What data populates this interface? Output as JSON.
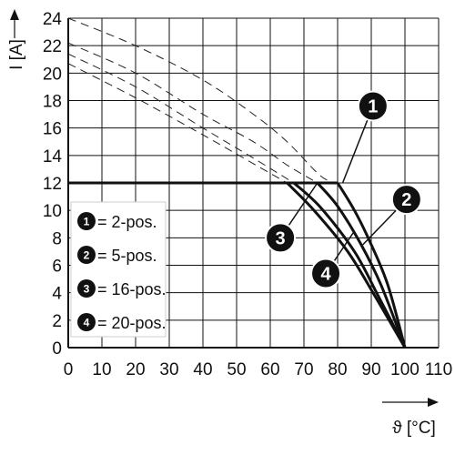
{
  "chart_data": {
    "type": "line",
    "xlabel": "ϑ [°C]",
    "ylabel": "I [A]",
    "xlim": [
      0,
      110
    ],
    "ylim": [
      0,
      24
    ],
    "x_ticks": [
      "0",
      "10",
      "20",
      "30",
      "40",
      "50",
      "60",
      "70",
      "80",
      "90",
      "100",
      "110"
    ],
    "y_ticks": [
      "0",
      "2",
      "4",
      "6",
      "8",
      "10",
      "12",
      "14",
      "16",
      "18",
      "20",
      "22",
      "24"
    ],
    "grid": true,
    "legend_position": "left",
    "series": [
      {
        "marker": "1",
        "name": "= 2-pos.",
        "rated": [
          [
            0,
            12
          ],
          [
            80,
            12
          ],
          [
            85,
            10
          ],
          [
            90,
            7.5
          ],
          [
            95,
            4.5
          ],
          [
            100,
            0
          ]
        ],
        "dashed": [
          [
            0,
            24
          ],
          [
            20,
            22
          ],
          [
            40,
            19.5
          ],
          [
            55,
            17
          ],
          [
            65,
            15
          ],
          [
            75,
            12.5
          ],
          [
            80,
            12
          ]
        ]
      },
      {
        "marker": "2",
        "name": "= 5-pos.",
        "rated": [
          [
            0,
            12
          ],
          [
            74,
            12
          ],
          [
            80,
            10.3
          ],
          [
            87,
            7.5
          ],
          [
            93,
            4.5
          ],
          [
            100,
            0
          ]
        ],
        "dashed": [
          [
            0,
            22.2
          ],
          [
            20,
            20
          ],
          [
            40,
            17
          ],
          [
            55,
            15
          ],
          [
            65,
            13.3
          ],
          [
            74,
            12
          ]
        ]
      },
      {
        "marker": "3",
        "name": "= 16-pos.",
        "rated": [
          [
            0,
            12
          ],
          [
            67,
            12
          ],
          [
            75,
            10.2
          ],
          [
            85,
            7
          ],
          [
            92,
            3.8
          ],
          [
            100,
            0
          ]
        ],
        "dashed": [
          [
            0,
            21.4
          ],
          [
            20,
            19
          ],
          [
            40,
            16
          ],
          [
            55,
            13.8
          ],
          [
            67,
            12
          ]
        ]
      },
      {
        "marker": "4",
        "name": "= 20-pos.",
        "rated": [
          [
            0,
            12
          ],
          [
            65,
            12
          ],
          [
            73,
            10
          ],
          [
            83,
            7
          ],
          [
            91,
            3.8
          ],
          [
            100,
            0
          ]
        ],
        "dashed": [
          [
            0,
            20.7
          ],
          [
            20,
            18.2
          ],
          [
            40,
            15.5
          ],
          [
            55,
            13.4
          ],
          [
            65,
            12
          ]
        ]
      }
    ],
    "callouts": [
      "1",
      "2",
      "3",
      "4"
    ]
  }
}
